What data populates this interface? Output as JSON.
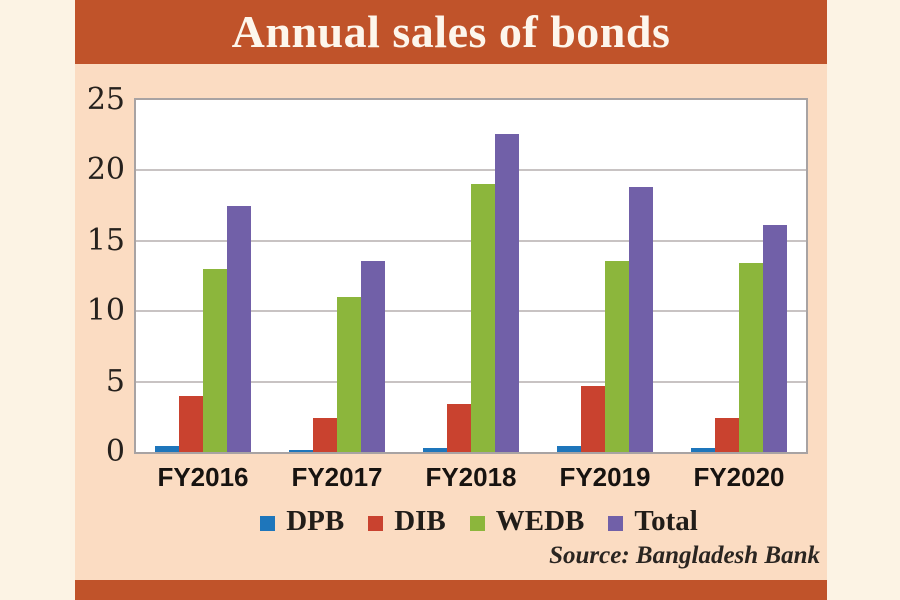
{
  "title": "Annual sales of bonds",
  "source": "Source: Bangladesh Bank",
  "colors": {
    "page_background": "#FCF3E4",
    "panel_background": "#FBDCC2",
    "accent_orange": "#C0532A",
    "plot_background": "#FFFFFF",
    "gridline": "#C8C3C3",
    "plot_border": "#A8A3A3",
    "text": "#211D19"
  },
  "chart_data": {
    "type": "bar",
    "title": "Annual sales of bonds",
    "categories": [
      "FY2016",
      "FY2017",
      "FY2018",
      "FY2019",
      "FY2020"
    ],
    "series": [
      {
        "name": "DPB",
        "color": "#1E76BB",
        "values": [
          0.4,
          0.15,
          0.25,
          0.4,
          0.3
        ]
      },
      {
        "name": "DIB",
        "color": "#C9422F",
        "values": [
          4.0,
          2.4,
          3.4,
          4.7,
          2.4
        ]
      },
      {
        "name": "WEDB",
        "color": "#8CB63C",
        "values": [
          13.0,
          11.0,
          19.0,
          13.6,
          13.4
        ]
      },
      {
        "name": "Total",
        "color": "#7160A8",
        "values": [
          17.5,
          13.6,
          22.6,
          18.8,
          16.1
        ]
      }
    ],
    "xlabel": "",
    "ylabel": "",
    "ylim": [
      0,
      25
    ],
    "yticks": [
      0,
      5,
      10,
      15,
      20,
      25
    ],
    "grid": true,
    "legend_position": "bottom",
    "annotation": "Source: Bangladesh Bank"
  }
}
